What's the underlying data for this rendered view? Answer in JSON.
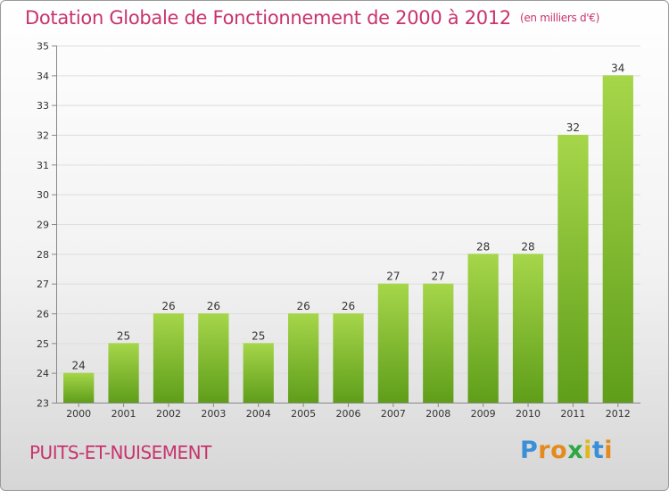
{
  "title": "Dotation Globale de Fonctionnement de 2000 à 2012",
  "unit": "(en milliers d'€)",
  "commune": "PUITS-ET-NUISEMENT",
  "logo": {
    "letters": [
      "P",
      "r",
      "o",
      "x",
      "i",
      "t",
      "i"
    ],
    "colors": [
      "#3a8fd6",
      "#e48a1e",
      "#e48a1e",
      "#2ea843",
      "#e0b81e",
      "#3a8fd6",
      "#e48a1e"
    ]
  },
  "colors": {
    "title": "#c8336d",
    "bar_top": "#a6d64a",
    "bar_bottom": "#5f9e1a",
    "grid": "#dddddd"
  },
  "chart_data": {
    "type": "bar",
    "categories": [
      "2000",
      "2001",
      "2002",
      "2003",
      "2004",
      "2005",
      "2006",
      "2007",
      "2008",
      "2009",
      "2010",
      "2011",
      "2012"
    ],
    "values": [
      24,
      25,
      26,
      26,
      25,
      26,
      26,
      27,
      27,
      28,
      28,
      32,
      34
    ],
    "value_labels": [
      "24",
      "25",
      "26",
      "26",
      "25",
      "26",
      "26",
      "27",
      "27",
      "28",
      "28",
      "32",
      "34"
    ],
    "yticks": [
      23,
      24,
      25,
      26,
      27,
      28,
      29,
      30,
      31,
      32,
      33,
      34,
      35
    ],
    "ylim": [
      23,
      35
    ],
    "grid": true
  }
}
